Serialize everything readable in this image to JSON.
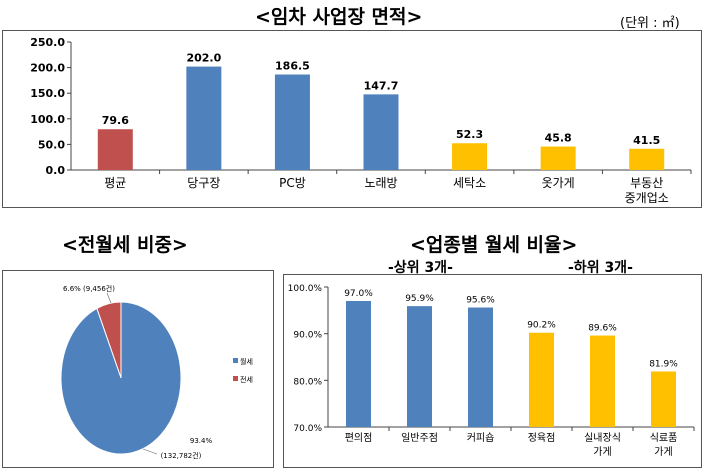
{
  "titles": {
    "area": "<임차 사업장 면적>",
    "share": "<전월세 비중>",
    "rent": "<업종별 월세 비율>"
  },
  "unit_label": "(단위 : ㎡)",
  "subtitles": {
    "top3": "-상위 3개-",
    "bottom3": "-하위 3개-"
  },
  "colors": {
    "red": "#C0504D",
    "blue": "#4F81BD",
    "yellow": "#FFC000"
  },
  "chart_data": [
    {
      "type": "bar",
      "title": "<임차 사업장 면적>",
      "unit": "(단위 : ㎡)",
      "categories": [
        "평균",
        "당구장",
        "PC방",
        "노래방",
        "세탁소",
        "옷가게",
        "부동산 중개업소"
      ],
      "category_lines": [
        [
          "평균"
        ],
        [
          "당구장"
        ],
        [
          "PC방"
        ],
        [
          "노래방"
        ],
        [
          "세탁소"
        ],
        [
          "옷가게"
        ],
        [
          "부동산",
          "중개업소"
        ]
      ],
      "values": [
        79.6,
        202.0,
        186.5,
        147.7,
        52.3,
        45.8,
        41.5
      ],
      "value_labels": [
        "79.6",
        "202.0",
        "186.5",
        "147.7",
        "52.3",
        "45.8",
        "41.5"
      ],
      "bar_colors": [
        "red",
        "blue",
        "blue",
        "blue",
        "yellow",
        "yellow",
        "yellow"
      ],
      "ylim": [
        0,
        250
      ],
      "yticks": [
        "0.0",
        "50.0",
        "100.0",
        "150.0",
        "200.0",
        "250.0"
      ],
      "grid": false
    },
    {
      "type": "pie",
      "title": "<전월세 비중>",
      "labels": [
        "월세",
        "전세"
      ],
      "values": [
        93.4,
        6.6
      ],
      "slice_colors": [
        "blue",
        "red"
      ],
      "data_labels": [
        [
          "93.4%",
          "(132,782건)"
        ],
        [
          "6.6% (9,456건)"
        ]
      ],
      "legend": [
        "월세",
        "전세"
      ],
      "legend_position": "right"
    },
    {
      "type": "bar",
      "title": "<업종별 월세 비율>",
      "categories": [
        "편의점",
        "일반주점",
        "커피숍",
        "정육점",
        "실내장식 가게",
        "식료품 가게"
      ],
      "category_lines": [
        [
          "편의점"
        ],
        [
          "일반주점"
        ],
        [
          "커피숍"
        ],
        [
          "정육점"
        ],
        [
          "실내장식",
          "가게"
        ],
        [
          "식료품",
          "가게"
        ]
      ],
      "values": [
        97.0,
        95.9,
        95.6,
        90.2,
        89.6,
        81.9
      ],
      "value_labels": [
        "97.0%",
        "95.9%",
        "95.6%",
        "90.2%",
        "89.6%",
        "81.9%"
      ],
      "bar_colors": [
        "blue",
        "blue",
        "blue",
        "yellow",
        "yellow",
        "yellow"
      ],
      "ylim": [
        70,
        100
      ],
      "yticks": [
        "70.0%",
        "80.0%",
        "90.0%",
        "100.0%"
      ],
      "grid": false
    }
  ]
}
